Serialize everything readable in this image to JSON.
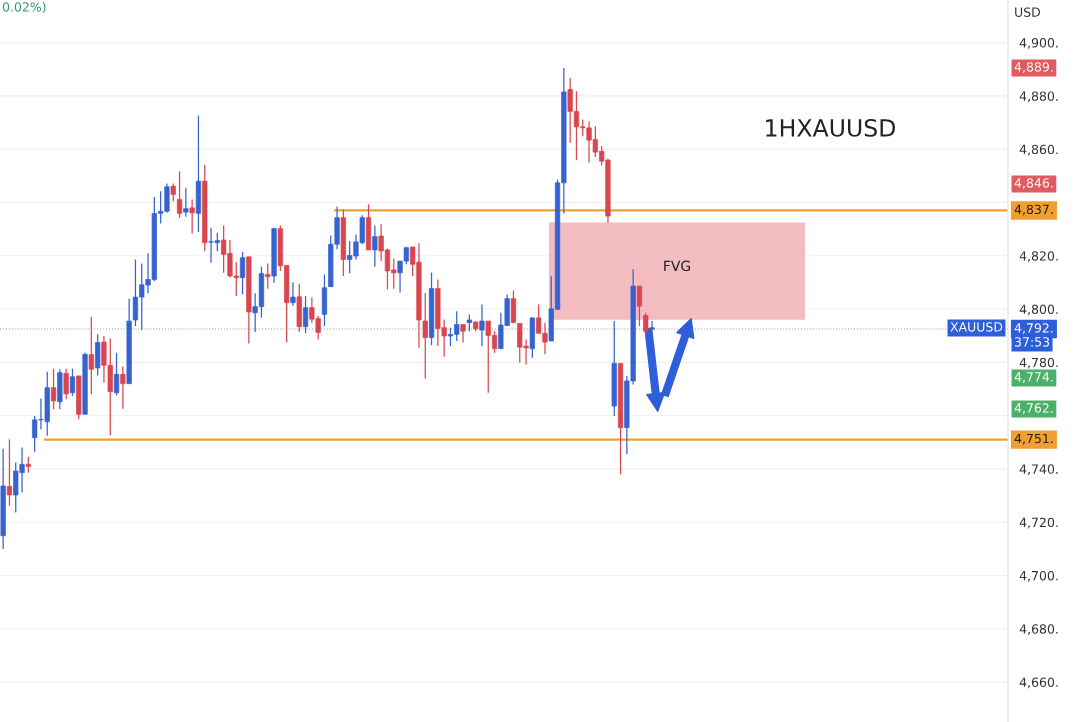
{
  "chart_data": {
    "type": "candlestick",
    "title": "1HXAUUSD",
    "ylabel": "USD",
    "categories": [
      null,
      null,
      null,
      null,
      null,
      null,
      null,
      null,
      null,
      null,
      null,
      null,
      null,
      null,
      null,
      null,
      null,
      null,
      null,
      null,
      null,
      null,
      null,
      null,
      null,
      null,
      null,
      null,
      null,
      null,
      null,
      null,
      null,
      null,
      null,
      null,
      null,
      null,
      null,
      null,
      null,
      null,
      null,
      null,
      null,
      null,
      null,
      null,
      null,
      null,
      null,
      null,
      null,
      null,
      null,
      null,
      null,
      null,
      null,
      null,
      null,
      null,
      null,
      null,
      null,
      null,
      null,
      null,
      null,
      null,
      null,
      null,
      null,
      null,
      null,
      null,
      null,
      null,
      null,
      null,
      null,
      null,
      null,
      null,
      null,
      null,
      null,
      null,
      null,
      null,
      null,
      null,
      null,
      null,
      null,
      null,
      null,
      null,
      null,
      null,
      null,
      null,
      null,
      null,
      null,
      null,
      null,
      null,
      null,
      null,
      null,
      null,
      null,
      null,
      null,
      null,
      null,
      null,
      null,
      null,
      null,
      null,
      null,
      null,
      null,
      null,
      null,
      null,
      null,
      null,
      null,
      null,
      null,
      null,
      null,
      null,
      null,
      null,
      null,
      null,
      null,
      null,
      null,
      null,
      null,
      null,
      null,
      null,
      null,
      null,
      null,
      null,
      null,
      null,
      null,
      null,
      null,
      null,
      null,
      null
    ],
    "ohlc": [
      [
        4714.9,
        4747.6,
        4709.9,
        4733.6
      ],
      [
        4733.4,
        4751.1,
        4726.1,
        4730.2
      ],
      [
        4730.2,
        4742.4,
        4723.6,
        4739.2
      ],
      [
        4738.6,
        4748,
        4731.1,
        4741.7
      ],
      [
        4741.7,
        4744.6,
        4738.6,
        4740.9
      ],
      [
        4751.7,
        4759.9,
        4746.4,
        4758.4
      ],
      [
        4758.4,
        4766.4,
        4754.9,
        4758.6
      ],
      [
        4757.7,
        4776.5,
        4752.4,
        4770.5
      ],
      [
        4770.5,
        4777.6,
        4762.4,
        4765.5
      ],
      [
        4765.2,
        4777.4,
        4762.4,
        4776.1
      ],
      [
        4775.9,
        4777.6,
        4766.1,
        4768.2
      ],
      [
        4768.6,
        4777.6,
        4767.4,
        4774.6
      ],
      [
        4774.9,
        4774.9,
        4758.6,
        4760.5
      ],
      [
        4760.5,
        4783.6,
        4760.5,
        4783
      ],
      [
        4782.9,
        4797.1,
        4768,
        4777.4
      ],
      [
        4777.9,
        4790.5,
        4775.1,
        4787.4
      ],
      [
        4787.6,
        4789.9,
        4772.4,
        4778.9
      ],
      [
        4778.9,
        4788.9,
        4752.6,
        4769
      ],
      [
        4768.6,
        4783.6,
        4767.6,
        4775.5
      ],
      [
        4775.5,
        4778.4,
        4762.6,
        4772
      ],
      [
        4772,
        4803.9,
        4772,
        4795.5
      ],
      [
        4795.9,
        4818.6,
        4793.6,
        4804.5
      ],
      [
        4804.5,
        4817.1,
        4792.1,
        4809.1
      ],
      [
        4809,
        4820.9,
        4805.9,
        4811.1
      ],
      [
        4811.1,
        4842.1,
        4810.5,
        4835.9
      ],
      [
        4835.9,
        4844.2,
        4832.1,
        4836.7
      ],
      [
        4836.7,
        4847.1,
        4836.1,
        4845.9
      ],
      [
        4846.1,
        4847.1,
        4840.5,
        4843
      ],
      [
        4841.1,
        4851.7,
        4834.2,
        4835.9
      ],
      [
        4836.4,
        4845.5,
        4834.6,
        4837.7
      ],
      [
        4838,
        4841.1,
        4828.4,
        4836.1
      ],
      [
        4835.9,
        4872.6,
        4828.9,
        4848
      ],
      [
        4848,
        4854.2,
        4821.7,
        4824.9
      ],
      [
        4825.1,
        4830.5,
        4817.4,
        4825.3
      ],
      [
        4824.9,
        4828.6,
        4821.7,
        4825.7
      ],
      [
        4825.9,
        4831.4,
        4813.6,
        4820.5
      ],
      [
        4820.9,
        4825.9,
        4811.8,
        4812.4
      ],
      [
        4812.4,
        4817.6,
        4804.9,
        4811.8
      ],
      [
        4811.8,
        4821.5,
        4805.5,
        4819.3
      ],
      [
        4819.6,
        4819.6,
        4787.1,
        4798.9
      ],
      [
        4798.6,
        4805.9,
        4791.4,
        4800.9
      ],
      [
        4800.9,
        4815.9,
        4796.8,
        4813.3
      ],
      [
        4813,
        4817.1,
        4807.6,
        4812.1
      ],
      [
        4812.4,
        4830.5,
        4809.9,
        4830.2
      ],
      [
        4830.2,
        4831.4,
        4814.3,
        4816.2
      ],
      [
        4816.4,
        4816.4,
        4787.4,
        4802.4
      ],
      [
        4802.4,
        4810.1,
        4801.2,
        4804.5
      ],
      [
        4804.6,
        4809.5,
        4791.4,
        4793.4
      ],
      [
        4793.4,
        4804.9,
        4790.9,
        4800.5
      ],
      [
        4800.5,
        4804.3,
        4794.9,
        4796.2
      ],
      [
        4796.4,
        4797.4,
        4788.6,
        4791.2
      ],
      [
        4798,
        4813,
        4793.6,
        4808
      ],
      [
        4808.4,
        4827.6,
        4808.4,
        4824.3
      ],
      [
        4824.3,
        4838.4,
        4822.4,
        4834.3
      ],
      [
        4834.3,
        4837.4,
        4812.4,
        4818.6
      ],
      [
        4818.6,
        4825.5,
        4813.4,
        4820.1
      ],
      [
        4819.9,
        4828,
        4818.6,
        4825.2
      ],
      [
        4824.9,
        4835.2,
        4824.3,
        4834.3
      ],
      [
        4834.3,
        4839.3,
        4822.2,
        4822.2
      ],
      [
        4822.2,
        4831.4,
        4815.9,
        4827.2
      ],
      [
        4827.4,
        4831.8,
        4818,
        4821.8
      ],
      [
        4822.2,
        4822.7,
        4807.4,
        4814.3
      ],
      [
        4814.7,
        4818.9,
        4807.6,
        4813.6
      ],
      [
        4813.6,
        4818,
        4806.2,
        4818
      ],
      [
        4818,
        4823.4,
        4816.8,
        4823
      ],
      [
        4823.3,
        4823.3,
        4812.4,
        4816.8
      ],
      [
        4817.6,
        4824.7,
        4785.5,
        4795.9
      ],
      [
        4795.5,
        4806,
        4773.9,
        4789.3
      ],
      [
        4789.3,
        4813.7,
        4786.4,
        4807.7
      ],
      [
        4807.7,
        4811.1,
        4786.1,
        4792.7
      ],
      [
        4793,
        4796.1,
        4782.1,
        4789.9
      ],
      [
        4789.9,
        4793,
        4786.1,
        4790.5
      ],
      [
        4790.5,
        4799.2,
        4788,
        4794.2
      ],
      [
        4794.2,
        4794.2,
        4787.4,
        4791.7
      ],
      [
        4794.9,
        4798,
        4791.7,
        4795.9
      ],
      [
        4795.1,
        4795.5,
        4791.7,
        4792.6
      ],
      [
        4792.1,
        4801.7,
        4786.1,
        4795.5
      ],
      [
        4795.5,
        4795.5,
        4768.6,
        4790.1
      ],
      [
        4790.1,
        4791.7,
        4783.6,
        4785.1
      ],
      [
        4785.1,
        4798.6,
        4785.1,
        4794
      ],
      [
        4793.8,
        4805.5,
        4793.8,
        4803.9
      ],
      [
        4803.9,
        4807,
        4794.9,
        4794.9
      ],
      [
        4794.6,
        4794.6,
        4779.9,
        4785.7
      ],
      [
        4786.1,
        4788.6,
        4779.2,
        4785.4
      ],
      [
        4785.1,
        4796.7,
        4781.7,
        4796.7
      ],
      [
        4796.7,
        4801.7,
        4790.9,
        4790.9
      ],
      [
        4790.9,
        4794.9,
        4783,
        4787.6
      ],
      [
        4788,
        4812.4,
        4788,
        4800.1
      ],
      [
        4799.9,
        4848.6,
        4799.9,
        4847.4
      ],
      [
        4847.4,
        4890.5,
        4835.9,
        4881.5
      ],
      [
        4882.4,
        4886.7,
        4862.4,
        4874.2
      ],
      [
        4874.2,
        4881.7,
        4855.9,
        4868.4
      ],
      [
        4868.4,
        4871.1,
        4864.9,
        4868
      ],
      [
        4868,
        4870.5,
        4854.9,
        4863.4
      ],
      [
        4863.6,
        4868.6,
        4857.1,
        4858.9
      ],
      [
        4859.2,
        4861.1,
        4853.9,
        4855.5
      ],
      [
        4855.9,
        4856.4,
        4832.4,
        4834.9
      ],
      [
        4763.6,
        4795.5,
        4759.9,
        4779.6
      ],
      [
        4779.6,
        4779.6,
        4738,
        4755.5
      ],
      [
        4755.5,
        4774.9,
        4745.5,
        4773
      ],
      [
        4773,
        4814.9,
        4771.7,
        4808.6
      ],
      [
        4808.6,
        4808.6,
        4793.6,
        4801.1
      ],
      [
        4797.6,
        4798.6,
        4789.6,
        4791.7
      ],
      [
        4792.4,
        4795.5,
        4792.1,
        4793
      ],
      null,
      null,
      null,
      null,
      null,
      null,
      null,
      null,
      null,
      null,
      null,
      null,
      null,
      null,
      null,
      null,
      null,
      null,
      null,
      null,
      null,
      null,
      null,
      null,
      null,
      null,
      null,
      null,
      null,
      null,
      null,
      null,
      null,
      null,
      null,
      null,
      null,
      null,
      null,
      null,
      null,
      null,
      null,
      null,
      null,
      null,
      null,
      null,
      null,
      null,
      null,
      null,
      null,
      null,
      null,
      null
    ],
    "ylim": [
      4645,
      4916
    ],
    "yticks": [
      {
        "value": 4660,
        "label": "4,660."
      },
      {
        "value": 4680,
        "label": "4,680."
      },
      {
        "value": 4700,
        "label": "4,700."
      },
      {
        "value": 4720,
        "label": "4,720."
      },
      {
        "value": 4740,
        "label": "4,740."
      },
      {
        "value": 4760,
        "label": null
      },
      {
        "value": 4780,
        "label": "4,780."
      },
      {
        "value": 4800,
        "label": "4,800."
      },
      {
        "value": 4820,
        "label": "4,820."
      },
      {
        "value": 4840,
        "label": null
      },
      {
        "value": 4860,
        "label": "4,860."
      },
      {
        "value": 4880,
        "label": "4,880."
      },
      {
        "value": 4900,
        "label": "4,900."
      }
    ],
    "tick_labels": "y",
    "grid": "y",
    "ref_lines": [
      {
        "axis": "y",
        "value": 4837,
        "label": "4,837.",
        "color": "#f0a030",
        "line_style": "solid"
      },
      {
        "axis": "y",
        "value": 4751,
        "label": "4,751.",
        "color": "#f0a030",
        "line_style": "solid"
      },
      {
        "axis": "y",
        "value": 4792.5,
        "label": "4,792.",
        "color": "#9e9e9e",
        "line_style": "dotted"
      }
    ],
    "bands": [
      {
        "axis": "y",
        "from": 4796,
        "to": 4832.5,
        "label": "FVG",
        "color": "#f2bcc0"
      }
    ],
    "annotations": [
      "0.02%)",
      "37:53",
      "XAUUSD",
      "4,889.",
      "4,846.",
      "4,774.",
      "4,762."
    ]
  }
}
